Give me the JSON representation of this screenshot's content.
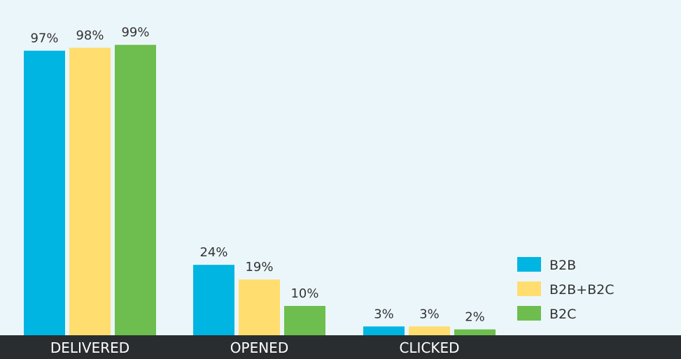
{
  "chart_data": {
    "type": "bar",
    "categories": [
      "DELIVERED",
      "OPENED",
      "CLICKED"
    ],
    "series": [
      {
        "name": "B2B",
        "values": [
          97,
          24,
          3
        ],
        "labels": [
          "97%",
          "24%",
          "3%"
        ],
        "color": "#00b5e2"
      },
      {
        "name": "B2B+B2C",
        "values": [
          98,
          19,
          3
        ],
        "labels": [
          "98%",
          "19%",
          "3%"
        ],
        "color": "#ffdd6f"
      },
      {
        "name": "B2C",
        "values": [
          99,
          10,
          2
        ],
        "labels": [
          "99%",
          "10%",
          "2%"
        ],
        "color": "#6dbe4f"
      }
    ],
    "ylim": [
      0,
      100
    ],
    "grid": false,
    "legend": "bottom-right",
    "axis_bar_color": "#2a2d30",
    "background": "#ebf6fb"
  }
}
